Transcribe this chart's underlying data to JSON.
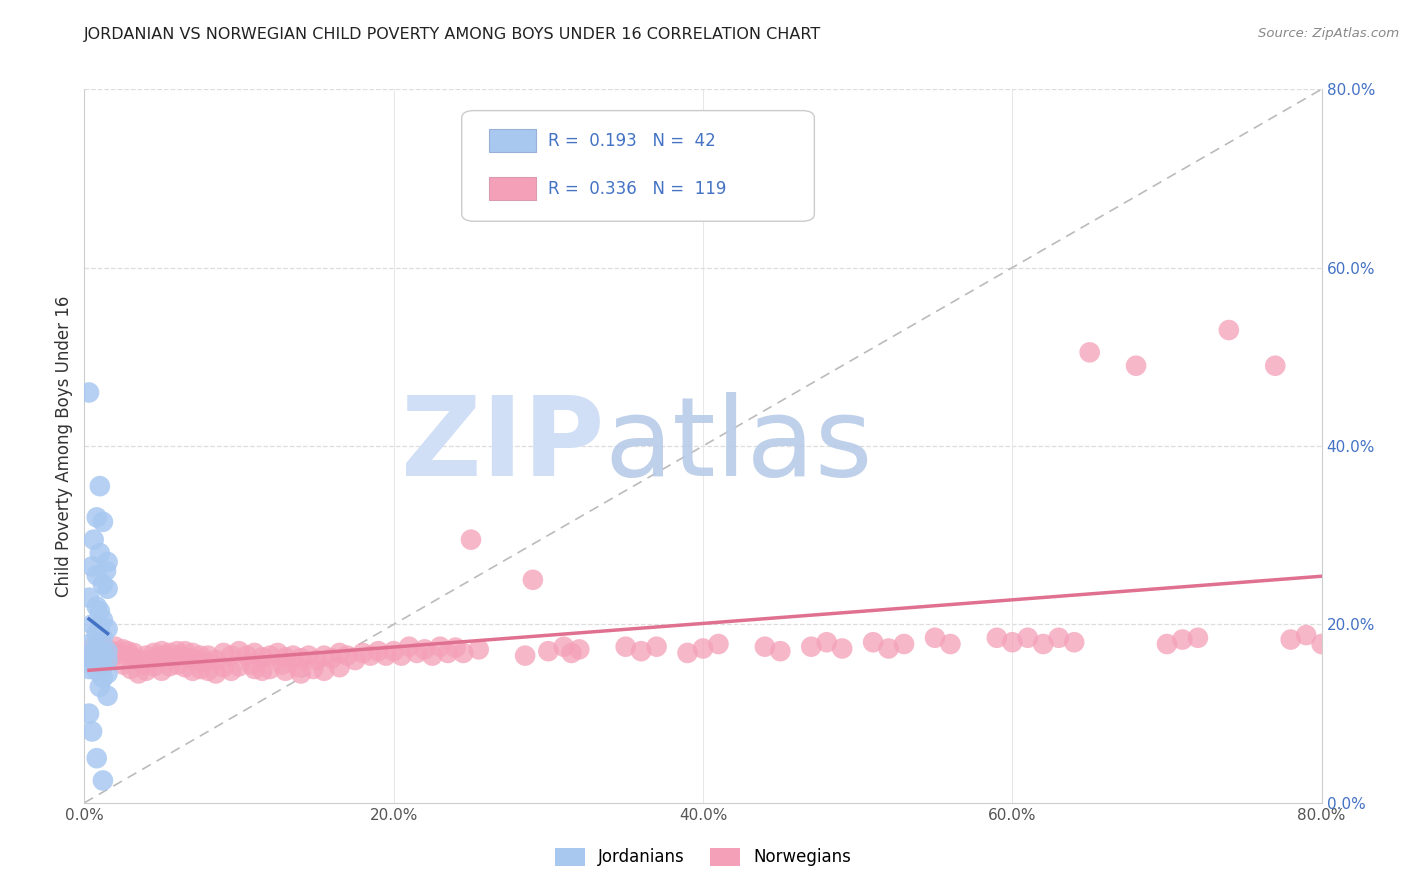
{
  "title": "JORDANIAN VS NORWEGIAN CHILD POVERTY AMONG BOYS UNDER 16 CORRELATION CHART",
  "source": "Source: ZipAtlas.com",
  "ylabel": "Child Poverty Among Boys Under 16",
  "xlim": [
    0.0,
    0.8
  ],
  "ylim": [
    0.0,
    0.8
  ],
  "xticks": [
    0.0,
    0.2,
    0.4,
    0.6,
    0.8
  ],
  "yticks_right": [
    0.0,
    0.2,
    0.4,
    0.6,
    0.8
  ],
  "ytick_labels_right": [
    "0.0%",
    "20.0%",
    "40.0%",
    "60.0%",
    "80.0%"
  ],
  "xtick_labels": [
    "0.0%",
    "20.0%",
    "40.0%",
    "60.0%",
    "80.0%"
  ],
  "jordan_color": "#a8c8f0",
  "norway_color": "#f4a0b8",
  "jordan_line_color": "#4472c4",
  "norway_line_color": "#e07090",
  "watermark_zip": "ZIP",
  "watermark_atlas": "atlas",
  "watermark_color_zip": "#d0dff5",
  "watermark_color_atlas": "#b8cce8",
  "background_color": "#ffffff",
  "grid_color": "#cccccc",
  "jordan_points": [
    [
      0.003,
      0.46
    ],
    [
      0.01,
      0.355
    ],
    [
      0.008,
      0.32
    ],
    [
      0.012,
      0.315
    ],
    [
      0.006,
      0.295
    ],
    [
      0.01,
      0.28
    ],
    [
      0.015,
      0.27
    ],
    [
      0.005,
      0.265
    ],
    [
      0.014,
      0.26
    ],
    [
      0.008,
      0.255
    ],
    [
      0.012,
      0.245
    ],
    [
      0.015,
      0.24
    ],
    [
      0.003,
      0.23
    ],
    [
      0.008,
      0.22
    ],
    [
      0.01,
      0.215
    ],
    [
      0.012,
      0.205
    ],
    [
      0.005,
      0.2
    ],
    [
      0.01,
      0.195
    ],
    [
      0.015,
      0.195
    ],
    [
      0.008,
      0.19
    ],
    [
      0.012,
      0.185
    ],
    [
      0.003,
      0.178
    ],
    [
      0.008,
      0.175
    ],
    [
      0.012,
      0.17
    ],
    [
      0.015,
      0.17
    ],
    [
      0.003,
      0.165
    ],
    [
      0.006,
      0.165
    ],
    [
      0.01,
      0.163
    ],
    [
      0.015,
      0.16
    ],
    [
      0.01,
      0.158
    ],
    [
      0.005,
      0.155
    ],
    [
      0.012,
      0.153
    ],
    [
      0.003,
      0.15
    ],
    [
      0.008,
      0.148
    ],
    [
      0.015,
      0.145
    ],
    [
      0.012,
      0.14
    ],
    [
      0.01,
      0.13
    ],
    [
      0.015,
      0.12
    ],
    [
      0.003,
      0.1
    ],
    [
      0.005,
      0.08
    ],
    [
      0.008,
      0.05
    ],
    [
      0.012,
      0.025
    ]
  ],
  "norway_points": [
    [
      0.003,
      0.168
    ],
    [
      0.006,
      0.175
    ],
    [
      0.006,
      0.16
    ],
    [
      0.008,
      0.17
    ],
    [
      0.01,
      0.18
    ],
    [
      0.01,
      0.16
    ],
    [
      0.012,
      0.175
    ],
    [
      0.012,
      0.155
    ],
    [
      0.015,
      0.165
    ],
    [
      0.018,
      0.17
    ],
    [
      0.02,
      0.175
    ],
    [
      0.02,
      0.165
    ],
    [
      0.022,
      0.168
    ],
    [
      0.025,
      0.172
    ],
    [
      0.025,
      0.155
    ],
    [
      0.028,
      0.17
    ],
    [
      0.03,
      0.165
    ],
    [
      0.03,
      0.15
    ],
    [
      0.032,
      0.168
    ],
    [
      0.035,
      0.16
    ],
    [
      0.035,
      0.145
    ],
    [
      0.038,
      0.155
    ],
    [
      0.04,
      0.165
    ],
    [
      0.04,
      0.148
    ],
    [
      0.042,
      0.16
    ],
    [
      0.045,
      0.168
    ],
    [
      0.045,
      0.153
    ],
    [
      0.048,
      0.163
    ],
    [
      0.05,
      0.17
    ],
    [
      0.05,
      0.148
    ],
    [
      0.052,
      0.165
    ],
    [
      0.055,
      0.168
    ],
    [
      0.055,
      0.153
    ],
    [
      0.058,
      0.162
    ],
    [
      0.06,
      0.17
    ],
    [
      0.06,
      0.155
    ],
    [
      0.062,
      0.165
    ],
    [
      0.065,
      0.17
    ],
    [
      0.065,
      0.152
    ],
    [
      0.068,
      0.162
    ],
    [
      0.07,
      0.168
    ],
    [
      0.07,
      0.148
    ],
    [
      0.072,
      0.16
    ],
    [
      0.075,
      0.165
    ],
    [
      0.075,
      0.15
    ],
    [
      0.078,
      0.158
    ],
    [
      0.08,
      0.165
    ],
    [
      0.08,
      0.148
    ],
    [
      0.085,
      0.16
    ],
    [
      0.085,
      0.145
    ],
    [
      0.09,
      0.168
    ],
    [
      0.09,
      0.152
    ],
    [
      0.095,
      0.165
    ],
    [
      0.095,
      0.148
    ],
    [
      0.1,
      0.17
    ],
    [
      0.1,
      0.153
    ],
    [
      0.105,
      0.165
    ],
    [
      0.108,
      0.155
    ],
    [
      0.11,
      0.168
    ],
    [
      0.11,
      0.15
    ],
    [
      0.115,
      0.163
    ],
    [
      0.115,
      0.148
    ],
    [
      0.12,
      0.165
    ],
    [
      0.12,
      0.15
    ],
    [
      0.125,
      0.168
    ],
    [
      0.128,
      0.155
    ],
    [
      0.13,
      0.163
    ],
    [
      0.13,
      0.148
    ],
    [
      0.135,
      0.165
    ],
    [
      0.138,
      0.152
    ],
    [
      0.14,
      0.162
    ],
    [
      0.14,
      0.145
    ],
    [
      0.145,
      0.165
    ],
    [
      0.148,
      0.15
    ],
    [
      0.15,
      0.16
    ],
    [
      0.155,
      0.165
    ],
    [
      0.155,
      0.148
    ],
    [
      0.16,
      0.162
    ],
    [
      0.165,
      0.168
    ],
    [
      0.165,
      0.152
    ],
    [
      0.17,
      0.165
    ],
    [
      0.175,
      0.16
    ],
    [
      0.18,
      0.168
    ],
    [
      0.185,
      0.165
    ],
    [
      0.19,
      0.17
    ],
    [
      0.195,
      0.165
    ],
    [
      0.2,
      0.17
    ],
    [
      0.205,
      0.165
    ],
    [
      0.21,
      0.175
    ],
    [
      0.215,
      0.168
    ],
    [
      0.22,
      0.172
    ],
    [
      0.225,
      0.165
    ],
    [
      0.23,
      0.175
    ],
    [
      0.235,
      0.168
    ],
    [
      0.24,
      0.174
    ],
    [
      0.245,
      0.168
    ],
    [
      0.25,
      0.295
    ],
    [
      0.255,
      0.172
    ],
    [
      0.285,
      0.165
    ],
    [
      0.29,
      0.25
    ],
    [
      0.3,
      0.17
    ],
    [
      0.31,
      0.175
    ],
    [
      0.315,
      0.168
    ],
    [
      0.32,
      0.172
    ],
    [
      0.35,
      0.175
    ],
    [
      0.36,
      0.17
    ],
    [
      0.37,
      0.175
    ],
    [
      0.39,
      0.168
    ],
    [
      0.4,
      0.173
    ],
    [
      0.41,
      0.178
    ],
    [
      0.44,
      0.175
    ],
    [
      0.45,
      0.17
    ],
    [
      0.47,
      0.175
    ],
    [
      0.48,
      0.18
    ],
    [
      0.49,
      0.173
    ],
    [
      0.51,
      0.18
    ],
    [
      0.52,
      0.173
    ],
    [
      0.53,
      0.178
    ],
    [
      0.55,
      0.185
    ],
    [
      0.56,
      0.178
    ],
    [
      0.59,
      0.185
    ],
    [
      0.6,
      0.18
    ],
    [
      0.61,
      0.185
    ],
    [
      0.62,
      0.178
    ],
    [
      0.63,
      0.185
    ],
    [
      0.64,
      0.18
    ],
    [
      0.65,
      0.505
    ],
    [
      0.68,
      0.49
    ],
    [
      0.7,
      0.178
    ],
    [
      0.71,
      0.183
    ],
    [
      0.72,
      0.185
    ],
    [
      0.74,
      0.53
    ],
    [
      0.77,
      0.49
    ],
    [
      0.78,
      0.183
    ],
    [
      0.79,
      0.188
    ],
    [
      0.8,
      0.178
    ]
  ]
}
